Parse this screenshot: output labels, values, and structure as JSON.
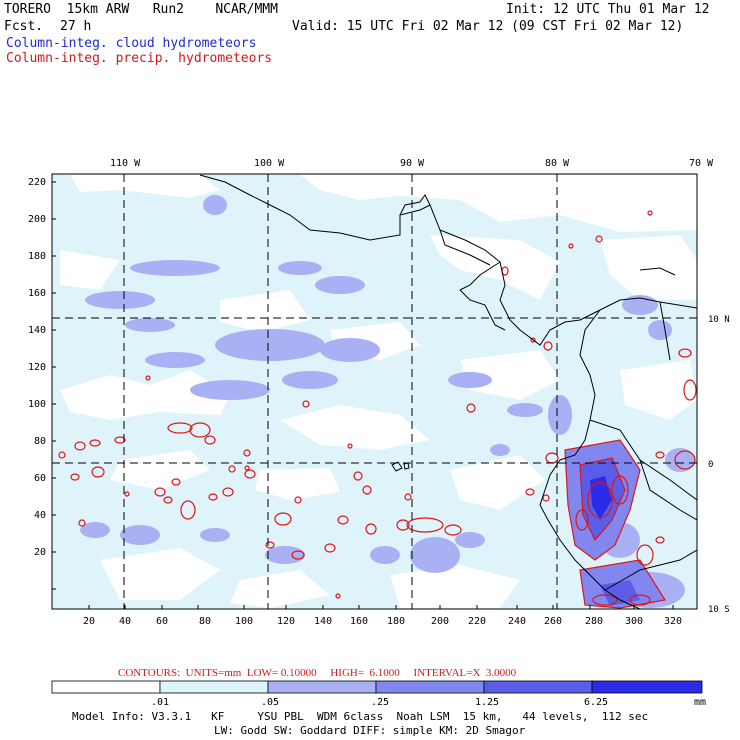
{
  "header": {
    "model_name": "TORERO  15km ARW   Run2    NCAR/MMM",
    "init": "Init: 12 UTC Thu 01 Mar 12",
    "fcst_label": "Fcst.",
    "fcst_hours": "27 h",
    "valid": "Valid: 15 UTC Fri 02 Mar 12 (09 CST Fri 02 Mar 12)",
    "field1": "Column-integ. cloud hydrometeors",
    "field2": "Column-integ. precip. hydrometeors"
  },
  "map": {
    "lon_labels": [
      "110 W",
      "100 W",
      "90 W",
      "80 W",
      "70 W"
    ],
    "lat_labels": [
      "10 N",
      "0",
      "10 S"
    ],
    "y_ticks": [
      "220",
      "200",
      "180",
      "160",
      "140",
      "120",
      "100",
      "80",
      "60",
      "40",
      "20"
    ],
    "x_ticks": [
      "20",
      "40",
      "60",
      "80",
      "100",
      "120",
      "140",
      "160",
      "180",
      "200",
      "220",
      "240",
      "260",
      "280",
      "300",
      "320"
    ]
  },
  "contours": {
    "text": "CONTOURS:  UNITS=mm  LOW= 0.10000     HIGH=  6.1000     INTERVAL=X  3.0000"
  },
  "colorbar": {
    "labels": [
      ".01",
      ".05",
      ".25",
      "1.25",
      "6.25"
    ],
    "unit": "mm",
    "colors": [
      "#ffffff",
      "#dff3fb",
      "#a9b1f4",
      "#8287f0",
      "#5a5de8",
      "#2b2be8",
      "#1212e6"
    ]
  },
  "footer": {
    "line1": "Model Info: V3.3.1   KF     YSU PBL  WDM 6class  Noah LSM  15 km,   44 levels,  112 sec",
    "line2": "LW: Godd SW: Goddard DIFF: simple KM: 2D Smagor"
  }
}
